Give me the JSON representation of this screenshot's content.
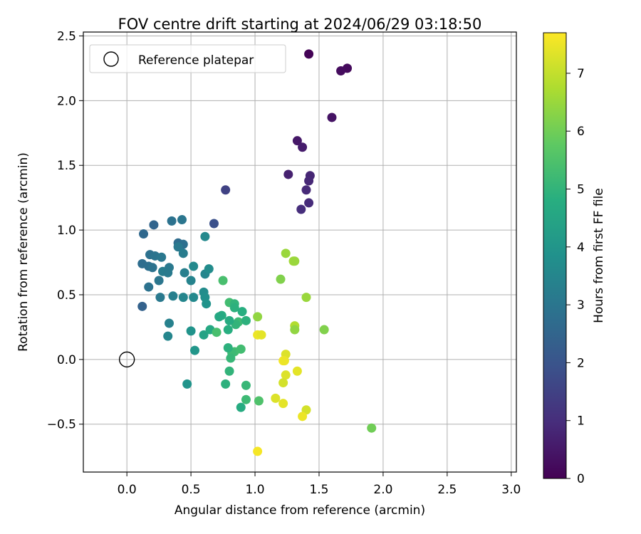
{
  "chart_data": {
    "type": "scatter",
    "title": "FOV centre drift starting at 2024/06/29 03:18:50",
    "xlabel": "Angular distance from reference (arcmin)",
    "ylabel": "Rotation from reference (arcmin)",
    "xlim": [
      -0.34,
      3.04
    ],
    "ylim": [
      -0.87,
      2.53
    ],
    "xticks": [
      0.0,
      0.5,
      1.0,
      1.5,
      2.0,
      2.5,
      3.0
    ],
    "xtick_labels": [
      "0.0",
      "0.5",
      "1.0",
      "1.5",
      "2.0",
      "2.5",
      "3.0"
    ],
    "yticks": [
      -0.5,
      0.0,
      0.5,
      1.0,
      1.5,
      2.0,
      2.5
    ],
    "ytick_labels": [
      "−0.5",
      "0.0",
      "0.5",
      "1.0",
      "1.5",
      "2.0",
      "2.5"
    ],
    "grid": true,
    "colormap": "viridis",
    "colorbar": {
      "label": "Hours from first FF file",
      "range": [
        0,
        7.7
      ],
      "ticks": [
        0,
        1,
        2,
        3,
        4,
        5,
        6,
        7
      ],
      "tick_labels": [
        "0",
        "1",
        "2",
        "3",
        "4",
        "5",
        "6",
        "7"
      ]
    },
    "legend": {
      "position": "top-left",
      "label": "Reference platepar"
    },
    "reference_point": [
      0.0,
      0.0
    ],
    "points": [
      [
        1.42,
        2.36,
        0.05
      ],
      [
        1.72,
        2.25,
        0.2
      ],
      [
        1.67,
        2.23,
        0.25
      ],
      [
        1.6,
        1.87,
        0.4
      ],
      [
        1.33,
        1.69,
        0.5
      ],
      [
        1.37,
        1.64,
        0.6
      ],
      [
        1.26,
        1.43,
        0.7
      ],
      [
        1.43,
        1.42,
        0.8
      ],
      [
        1.42,
        1.38,
        0.85
      ],
      [
        1.4,
        1.31,
        0.9
      ],
      [
        1.42,
        1.21,
        0.95
      ],
      [
        1.36,
        1.16,
        1.0
      ],
      [
        0.77,
        1.31,
        1.5
      ],
      [
        0.68,
        1.05,
        1.9
      ],
      [
        0.12,
        0.41,
        2.4
      ],
      [
        0.21,
        1.04,
        2.5
      ],
      [
        0.13,
        0.97,
        2.6
      ],
      [
        0.35,
        1.07,
        2.9
      ],
      [
        0.43,
        1.08,
        3.0
      ],
      [
        0.4,
        0.9,
        2.7
      ],
      [
        0.44,
        0.89,
        2.8
      ],
      [
        0.4,
        0.87,
        3.1
      ],
      [
        0.44,
        0.82,
        3.2
      ],
      [
        0.18,
        0.81,
        2.85
      ],
      [
        0.22,
        0.8,
        2.95
      ],
      [
        0.27,
        0.79,
        3.05
      ],
      [
        0.12,
        0.74,
        2.75
      ],
      [
        0.17,
        0.72,
        2.8
      ],
      [
        0.2,
        0.71,
        2.9
      ],
      [
        0.33,
        0.71,
        3.1
      ],
      [
        0.28,
        0.68,
        3.2
      ],
      [
        0.32,
        0.67,
        3.15
      ],
      [
        0.45,
        0.67,
        3.3
      ],
      [
        0.61,
        0.66,
        3.5
      ],
      [
        0.64,
        0.7,
        3.7
      ],
      [
        0.52,
        0.72,
        3.6
      ],
      [
        0.5,
        0.61,
        3.4
      ],
      [
        0.25,
        0.61,
        3.0
      ],
      [
        0.17,
        0.56,
        2.9
      ],
      [
        0.6,
        0.52,
        3.7
      ],
      [
        0.61,
        0.48,
        3.8
      ],
      [
        0.26,
        0.48,
        3.1
      ],
      [
        0.36,
        0.49,
        3.3
      ],
      [
        0.44,
        0.48,
        3.5
      ],
      [
        0.52,
        0.48,
        3.6
      ],
      [
        0.62,
        0.43,
        3.9
      ],
      [
        0.61,
        0.95,
        3.6
      ],
      [
        0.33,
        0.28,
        3.35
      ],
      [
        0.32,
        0.18,
        3.5
      ],
      [
        0.5,
        0.22,
        3.9
      ],
      [
        0.53,
        0.07,
        4.0
      ],
      [
        0.6,
        0.19,
        4.4
      ],
      [
        0.65,
        0.23,
        4.6
      ],
      [
        0.47,
        -0.19,
        3.95
      ],
      [
        0.75,
        0.61,
        5.4
      ],
      [
        0.8,
        0.44,
        5.3
      ],
      [
        0.84,
        0.43,
        5.0
      ],
      [
        0.84,
        0.4,
        4.9
      ],
      [
        0.9,
        0.37,
        4.8
      ],
      [
        0.74,
        0.34,
        4.7
      ],
      [
        0.72,
        0.33,
        4.6
      ],
      [
        0.87,
        0.29,
        5.2
      ],
      [
        0.85,
        0.27,
        5.0
      ],
      [
        0.8,
        0.3,
        4.7
      ],
      [
        0.93,
        0.3,
        4.9
      ],
      [
        0.7,
        0.21,
        5.4
      ],
      [
        0.79,
        0.23,
        4.8
      ],
      [
        0.84,
        0.06,
        5.3
      ],
      [
        0.82,
        0.05,
        5.2
      ],
      [
        0.79,
        0.09,
        4.9
      ],
      [
        0.81,
        0.01,
        5.1
      ],
      [
        0.89,
        0.08,
        5.3
      ],
      [
        0.8,
        -0.09,
        5.0
      ],
      [
        0.77,
        -0.19,
        4.9
      ],
      [
        0.93,
        -0.2,
        5.1
      ],
      [
        0.93,
        -0.31,
        5.2
      ],
      [
        0.89,
        -0.37,
        4.7
      ],
      [
        1.03,
        -0.32,
        5.5
      ],
      [
        1.02,
        0.33,
        6.4
      ],
      [
        1.2,
        0.62,
        6.2
      ],
      [
        1.24,
        0.82,
        6.5
      ],
      [
        1.3,
        0.76,
        6.6
      ],
      [
        1.31,
        0.76,
        6.5
      ],
      [
        1.4,
        0.48,
        6.5
      ],
      [
        1.31,
        0.26,
        6.8
      ],
      [
        1.31,
        0.23,
        6.4
      ],
      [
        1.54,
        0.23,
        6.2
      ],
      [
        1.91,
        -0.53,
        6.0
      ],
      [
        1.02,
        0.19,
        7.5
      ],
      [
        1.05,
        0.19,
        7.4
      ],
      [
        1.24,
        0.04,
        7.3
      ],
      [
        1.22,
        -0.01,
        7.6
      ],
      [
        1.23,
        -0.01,
        7.5
      ],
      [
        1.33,
        -0.09,
        7.4
      ],
      [
        1.24,
        -0.12,
        7.3
      ],
      [
        1.22,
        -0.18,
        7.2
      ],
      [
        1.16,
        -0.3,
        7.3
      ],
      [
        1.22,
        -0.34,
        7.4
      ],
      [
        1.4,
        -0.39,
        7.2
      ],
      [
        1.37,
        -0.44,
        7.5
      ],
      [
        1.02,
        -0.71,
        7.6
      ]
    ]
  }
}
